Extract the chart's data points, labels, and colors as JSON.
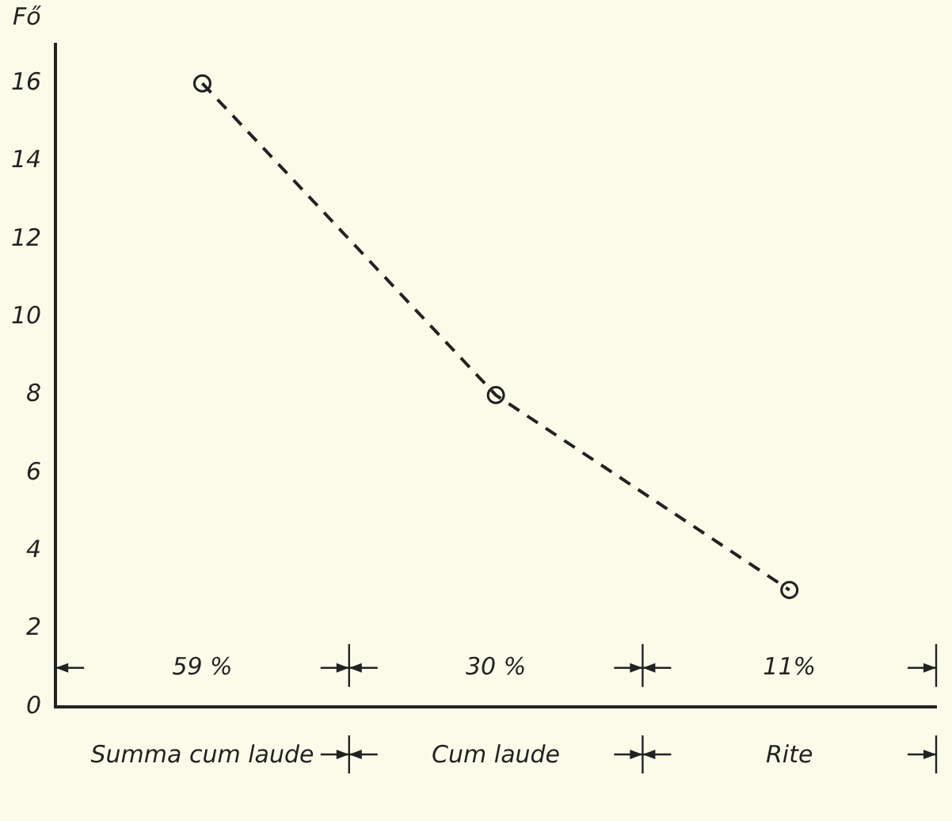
{
  "chart_data": {
    "type": "line",
    "ylabel": "Fő",
    "categories": [
      "Summa cum laude",
      "Cum laude",
      "Rite"
    ],
    "series": [
      {
        "color": "#222222",
        "values": [
          16,
          8,
          3
        ]
      }
    ],
    "ylim": [
      0,
      17
    ],
    "yticks": [
      0,
      2,
      4,
      6,
      8,
      10,
      12,
      14,
      16
    ],
    "grid": false,
    "legend": false,
    "marker": "circle",
    "line_style": "dashed",
    "annotations": [
      "59 %",
      "30 %",
      "11%"
    ]
  }
}
